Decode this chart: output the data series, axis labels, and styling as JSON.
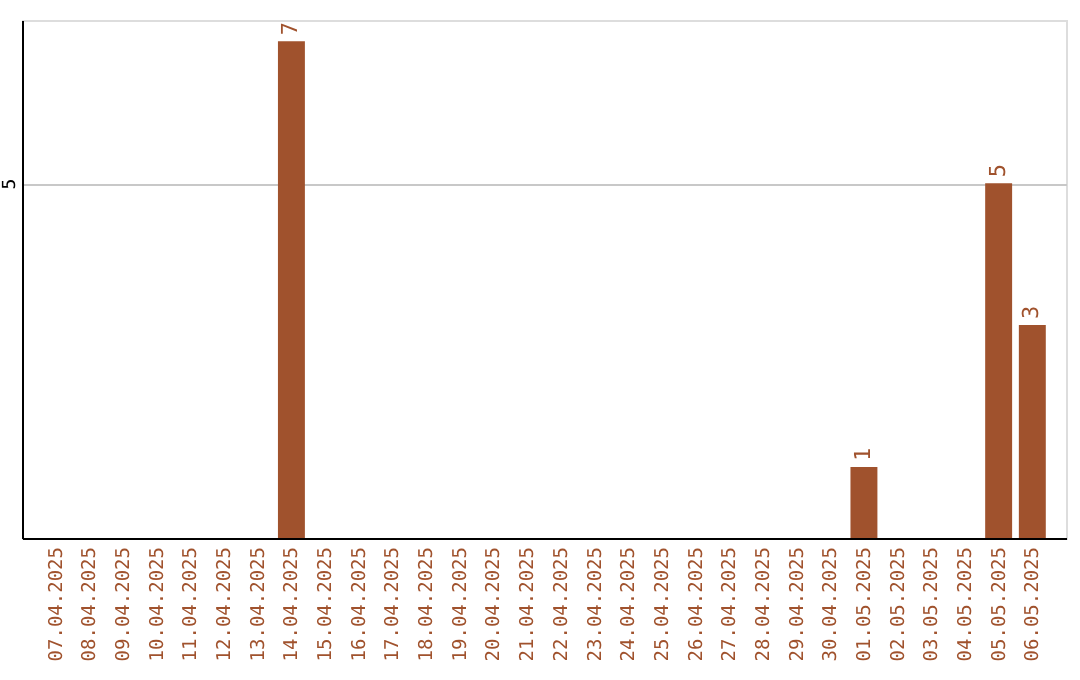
{
  "chart_data": {
    "type": "bar",
    "categories": [
      "07.04.2025",
      "08.04.2025",
      "09.04.2025",
      "10.04.2025",
      "11.04.2025",
      "12.04.2025",
      "13.04.2025",
      "14.04.2025",
      "15.04.2025",
      "16.04.2025",
      "17.04.2025",
      "18.04.2025",
      "19.04.2025",
      "20.04.2025",
      "21.04.2025",
      "22.04.2025",
      "23.04.2025",
      "24.04.2025",
      "25.04.2025",
      "26.04.2025",
      "27.04.2025",
      "28.04.2025",
      "29.04.2025",
      "30.04.2025",
      "01.05.2025",
      "02.05.2025",
      "03.05.2025",
      "04.05.2025",
      "05.05.2025",
      "06.05.2025"
    ],
    "values": [
      0,
      0,
      0,
      0,
      0,
      0,
      0,
      7,
      0,
      0,
      0,
      0,
      0,
      0,
      0,
      0,
      0,
      0,
      0,
      0,
      0,
      0,
      0,
      0,
      1,
      0,
      0,
      0,
      5,
      3
    ],
    "value_labels": [
      null,
      null,
      null,
      null,
      null,
      null,
      null,
      "7",
      null,
      null,
      null,
      null,
      null,
      null,
      null,
      null,
      null,
      null,
      null,
      null,
      null,
      null,
      null,
      null,
      "1",
      null,
      null,
      null,
      "5",
      "3"
    ],
    "color": "#a0522d",
    "ylim": [
      0,
      7.3
    ],
    "yticks": [
      5
    ],
    "grid": "y"
  }
}
